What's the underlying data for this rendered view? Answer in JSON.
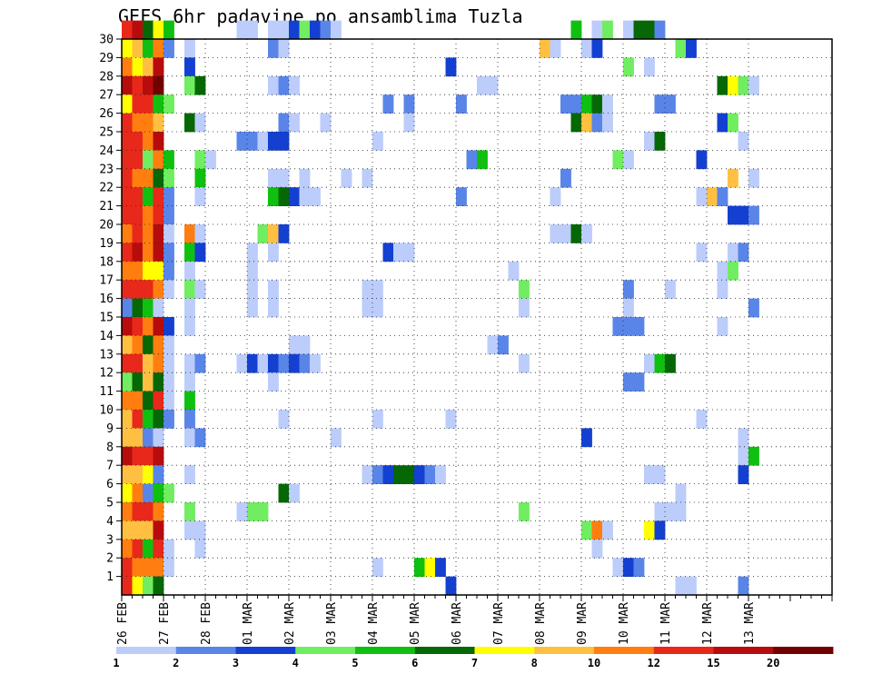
{
  "chart_data": {
    "type": "heatmap",
    "title": "GEFS 6hr padavine po ansamblima Tuzla",
    "xlabel": "",
    "ylabel": "",
    "x_ticks": [
      "26 FEB",
      "27 FEB",
      "28 FEB",
      "01 MAR",
      "02 MAR",
      "03 MAR",
      "04 MAR",
      "05 MAR",
      "06 MAR",
      "07 MAR",
      "08 MAR",
      "09 MAR",
      "10 MAR",
      "11 MAR",
      "12 MAR",
      "13 MAR"
    ],
    "y_ticks": [
      "1",
      "2",
      "3",
      "4",
      "5",
      "6",
      "7",
      "8",
      "9",
      "10",
      "11",
      "12",
      "13",
      "14",
      "15",
      "16",
      "17",
      "18",
      "19",
      "20",
      "21",
      "22",
      "23",
      "24",
      "25",
      "26",
      "27",
      "28",
      "29",
      "30"
    ],
    "y_range": [
      0,
      30
    ],
    "x_steps": 68,
    "grid": true,
    "legend": "bottom",
    "colorbar": {
      "colors": [
        "#bccdfb",
        "#5a85e8",
        "#1440d2",
        "#70ed60",
        "#10c010",
        "#056805",
        "#ffff00",
        "#ffc042",
        "#ff7e0f",
        "#e8281a",
        "#b80c0c",
        "#720000"
      ],
      "labels": [
        "1",
        "2",
        "3",
        "4",
        "5",
        "6",
        "7",
        "8",
        "10",
        "12",
        "15",
        "20"
      ]
    },
    "cells": [
      [
        0,
        30,
        9
      ],
      [
        1,
        30,
        10
      ],
      [
        2,
        30,
        5
      ],
      [
        3,
        30,
        6
      ],
      [
        4,
        30,
        4
      ],
      [
        11,
        30,
        0
      ],
      [
        12,
        30,
        0
      ],
      [
        14,
        30,
        0
      ],
      [
        15,
        30,
        0
      ],
      [
        16,
        30,
        2
      ],
      [
        17,
        30,
        3
      ],
      [
        18,
        30,
        2
      ],
      [
        19,
        30,
        1
      ],
      [
        20,
        30,
        0
      ],
      [
        43,
        30,
        4
      ],
      [
        45,
        30,
        0
      ],
      [
        46,
        30,
        3
      ],
      [
        48,
        30,
        0
      ],
      [
        49,
        30,
        5
      ],
      [
        50,
        30,
        5
      ],
      [
        51,
        30,
        1
      ],
      [
        0,
        29,
        6
      ],
      [
        1,
        29,
        7
      ],
      [
        2,
        29,
        4
      ],
      [
        3,
        29,
        8
      ],
      [
        4,
        29,
        1
      ],
      [
        6,
        29,
        0
      ],
      [
        14,
        29,
        1
      ],
      [
        15,
        29,
        0
      ],
      [
        40,
        29,
        7
      ],
      [
        41,
        29,
        0
      ],
      [
        44,
        29,
        0
      ],
      [
        45,
        29,
        2
      ],
      [
        53,
        29,
        3
      ],
      [
        54,
        29,
        2
      ],
      [
        0,
        28,
        8
      ],
      [
        1,
        28,
        6
      ],
      [
        2,
        28,
        7
      ],
      [
        3,
        28,
        10
      ],
      [
        6,
        28,
        2
      ],
      [
        31,
        28,
        2
      ],
      [
        48,
        28,
        3
      ],
      [
        50,
        28,
        0
      ],
      [
        0,
        27,
        10
      ],
      [
        1,
        27,
        9
      ],
      [
        2,
        27,
        10
      ],
      [
        3,
        27,
        11
      ],
      [
        6,
        27,
        3
      ],
      [
        7,
        27,
        5
      ],
      [
        14,
        27,
        0
      ],
      [
        15,
        27,
        1
      ],
      [
        16,
        27,
        0
      ],
      [
        34,
        27,
        0
      ],
      [
        35,
        27,
        0
      ],
      [
        57,
        27,
        5
      ],
      [
        58,
        27,
        6
      ],
      [
        59,
        27,
        3
      ],
      [
        60,
        27,
        0
      ],
      [
        0,
        26,
        6
      ],
      [
        1,
        26,
        9
      ],
      [
        2,
        26,
        9
      ],
      [
        3,
        26,
        4
      ],
      [
        4,
        26,
        3
      ],
      [
        25,
        26,
        1
      ],
      [
        27,
        26,
        1
      ],
      [
        32,
        26,
        1
      ],
      [
        42,
        26,
        1
      ],
      [
        43,
        26,
        1
      ],
      [
        44,
        26,
        4
      ],
      [
        45,
        26,
        5
      ],
      [
        46,
        26,
        0
      ],
      [
        51,
        26,
        1
      ],
      [
        52,
        26,
        1
      ],
      [
        0,
        25,
        9
      ],
      [
        1,
        25,
        8
      ],
      [
        2,
        25,
        8
      ],
      [
        3,
        25,
        7
      ],
      [
        6,
        25,
        5
      ],
      [
        7,
        25,
        0
      ],
      [
        15,
        25,
        1
      ],
      [
        16,
        25,
        0
      ],
      [
        19,
        25,
        0
      ],
      [
        27,
        25,
        0
      ],
      [
        43,
        25,
        5
      ],
      [
        44,
        25,
        7
      ],
      [
        45,
        25,
        1
      ],
      [
        46,
        25,
        0
      ],
      [
        57,
        25,
        2
      ],
      [
        58,
        25,
        3
      ],
      [
        0,
        24,
        9
      ],
      [
        1,
        24,
        9
      ],
      [
        2,
        24,
        8
      ],
      [
        3,
        24,
        10
      ],
      [
        11,
        24,
        1
      ],
      [
        12,
        24,
        1
      ],
      [
        13,
        24,
        0
      ],
      [
        14,
        24,
        2
      ],
      [
        15,
        24,
        2
      ],
      [
        24,
        24,
        0
      ],
      [
        50,
        24,
        0
      ],
      [
        51,
        24,
        5
      ],
      [
        59,
        24,
        0
      ],
      [
        0,
        23,
        9
      ],
      [
        1,
        23,
        9
      ],
      [
        2,
        23,
        3
      ],
      [
        3,
        23,
        8
      ],
      [
        4,
        23,
        4
      ],
      [
        7,
        23,
        3
      ],
      [
        8,
        23,
        0
      ],
      [
        33,
        23,
        1
      ],
      [
        34,
        23,
        4
      ],
      [
        47,
        23,
        3
      ],
      [
        48,
        23,
        0
      ],
      [
        55,
        23,
        2
      ],
      [
        0,
        22,
        9
      ],
      [
        1,
        22,
        8
      ],
      [
        2,
        22,
        8
      ],
      [
        3,
        22,
        5
      ],
      [
        4,
        22,
        3
      ],
      [
        7,
        22,
        4
      ],
      [
        14,
        22,
        0
      ],
      [
        15,
        22,
        0
      ],
      [
        17,
        22,
        0
      ],
      [
        21,
        22,
        0
      ],
      [
        23,
        22,
        0
      ],
      [
        42,
        22,
        1
      ],
      [
        58,
        22,
        7
      ],
      [
        60,
        22,
        0
      ],
      [
        0,
        21,
        9
      ],
      [
        1,
        21,
        9
      ],
      [
        2,
        21,
        4
      ],
      [
        3,
        21,
        9
      ],
      [
        4,
        21,
        1
      ],
      [
        7,
        21,
        0
      ],
      [
        14,
        21,
        4
      ],
      [
        15,
        21,
        5
      ],
      [
        16,
        21,
        2
      ],
      [
        17,
        21,
        0
      ],
      [
        18,
        21,
        0
      ],
      [
        32,
        21,
        1
      ],
      [
        41,
        21,
        0
      ],
      [
        55,
        21,
        0
      ],
      [
        56,
        21,
        7
      ],
      [
        57,
        21,
        1
      ],
      [
        0,
        20,
        9
      ],
      [
        1,
        20,
        9
      ],
      [
        2,
        20,
        8
      ],
      [
        3,
        20,
        9
      ],
      [
        4,
        20,
        1
      ],
      [
        58,
        20,
        2
      ],
      [
        59,
        20,
        2
      ],
      [
        60,
        20,
        1
      ],
      [
        0,
        19,
        8
      ],
      [
        1,
        19,
        9
      ],
      [
        2,
        19,
        8
      ],
      [
        3,
        19,
        10
      ],
      [
        4,
        19,
        0
      ],
      [
        6,
        19,
        8
      ],
      [
        7,
        19,
        0
      ],
      [
        13,
        19,
        3
      ],
      [
        14,
        19,
        7
      ],
      [
        15,
        19,
        2
      ],
      [
        41,
        19,
        0
      ],
      [
        42,
        19,
        0
      ],
      [
        43,
        19,
        5
      ],
      [
        44,
        19,
        0
      ],
      [
        0,
        18,
        9
      ],
      [
        1,
        18,
        10
      ],
      [
        2,
        18,
        8
      ],
      [
        3,
        18,
        10
      ],
      [
        4,
        18,
        1
      ],
      [
        6,
        18,
        4
      ],
      [
        7,
        18,
        2
      ],
      [
        12,
        18,
        0
      ],
      [
        14,
        18,
        0
      ],
      [
        25,
        18,
        2
      ],
      [
        26,
        18,
        0
      ],
      [
        27,
        18,
        0
      ],
      [
        55,
        18,
        0
      ],
      [
        58,
        18,
        0
      ],
      [
        59,
        18,
        1
      ],
      [
        0,
        17,
        8
      ],
      [
        1,
        17,
        8
      ],
      [
        2,
        17,
        6
      ],
      [
        3,
        17,
        6
      ],
      [
        4,
        17,
        1
      ],
      [
        6,
        17,
        0
      ],
      [
        12,
        17,
        0
      ],
      [
        37,
        17,
        0
      ],
      [
        57,
        17,
        0
      ],
      [
        58,
        17,
        3
      ],
      [
        0,
        16,
        9
      ],
      [
        1,
        16,
        9
      ],
      [
        2,
        16,
        9
      ],
      [
        3,
        16,
        8
      ],
      [
        4,
        16,
        0
      ],
      [
        6,
        16,
        3
      ],
      [
        7,
        16,
        0
      ],
      [
        12,
        16,
        0
      ],
      [
        14,
        16,
        0
      ],
      [
        23,
        16,
        0
      ],
      [
        24,
        16,
        0
      ],
      [
        38,
        16,
        3
      ],
      [
        48,
        16,
        1
      ],
      [
        52,
        16,
        0
      ],
      [
        57,
        16,
        0
      ],
      [
        0,
        15,
        1
      ],
      [
        1,
        15,
        5
      ],
      [
        2,
        15,
        4
      ],
      [
        3,
        15,
        0
      ],
      [
        6,
        15,
        0
      ],
      [
        12,
        15,
        0
      ],
      [
        14,
        15,
        0
      ],
      [
        23,
        15,
        0
      ],
      [
        24,
        15,
        0
      ],
      [
        38,
        15,
        0
      ],
      [
        48,
        15,
        0
      ],
      [
        60,
        15,
        1
      ],
      [
        0,
        14,
        10
      ],
      [
        1,
        14,
        9
      ],
      [
        2,
        14,
        8
      ],
      [
        3,
        14,
        10
      ],
      [
        4,
        14,
        2
      ],
      [
        6,
        14,
        0
      ],
      [
        47,
        14,
        1
      ],
      [
        48,
        14,
        1
      ],
      [
        49,
        14,
        1
      ],
      [
        57,
        14,
        0
      ],
      [
        0,
        13,
        7
      ],
      [
        1,
        13,
        8
      ],
      [
        2,
        13,
        5
      ],
      [
        3,
        13,
        8
      ],
      [
        4,
        13,
        0
      ],
      [
        16,
        13,
        0
      ],
      [
        17,
        13,
        0
      ],
      [
        35,
        13,
        0
      ],
      [
        36,
        13,
        1
      ],
      [
        0,
        12,
        9
      ],
      [
        1,
        12,
        9
      ],
      [
        2,
        12,
        7
      ],
      [
        3,
        12,
        8
      ],
      [
        4,
        12,
        0
      ],
      [
        6,
        12,
        0
      ],
      [
        7,
        12,
        1
      ],
      [
        11,
        12,
        0
      ],
      [
        12,
        12,
        2
      ],
      [
        13,
        12,
        0
      ],
      [
        14,
        12,
        2
      ],
      [
        15,
        12,
        1
      ],
      [
        16,
        12,
        2
      ],
      [
        17,
        12,
        1
      ],
      [
        18,
        12,
        0
      ],
      [
        38,
        12,
        0
      ],
      [
        50,
        12,
        0
      ],
      [
        51,
        12,
        4
      ],
      [
        52,
        12,
        5
      ],
      [
        0,
        11,
        3
      ],
      [
        1,
        11,
        5
      ],
      [
        2,
        11,
        7
      ],
      [
        3,
        11,
        5
      ],
      [
        4,
        11,
        0
      ],
      [
        6,
        11,
        0
      ],
      [
        14,
        11,
        0
      ],
      [
        48,
        11,
        1
      ],
      [
        49,
        11,
        1
      ],
      [
        0,
        10,
        8
      ],
      [
        1,
        10,
        8
      ],
      [
        2,
        10,
        5
      ],
      [
        3,
        10,
        9
      ],
      [
        4,
        10,
        0
      ],
      [
        6,
        10,
        4
      ],
      [
        0,
        9,
        7
      ],
      [
        1,
        9,
        9
      ],
      [
        2,
        9,
        4
      ],
      [
        3,
        9,
        5
      ],
      [
        4,
        9,
        1
      ],
      [
        6,
        9,
        1
      ],
      [
        15,
        9,
        0
      ],
      [
        24,
        9,
        0
      ],
      [
        31,
        9,
        0
      ],
      [
        55,
        9,
        0
      ],
      [
        0,
        8,
        7
      ],
      [
        1,
        8,
        7
      ],
      [
        2,
        8,
        1
      ],
      [
        3,
        8,
        0
      ],
      [
        6,
        8,
        0
      ],
      [
        7,
        8,
        1
      ],
      [
        20,
        8,
        0
      ],
      [
        44,
        8,
        2
      ],
      [
        59,
        8,
        0
      ],
      [
        0,
        7,
        10
      ],
      [
        1,
        7,
        9
      ],
      [
        2,
        7,
        9
      ],
      [
        3,
        7,
        10
      ],
      [
        59,
        7,
        0
      ],
      [
        60,
        7,
        4
      ],
      [
        0,
        6,
        7
      ],
      [
        1,
        6,
        7
      ],
      [
        2,
        6,
        6
      ],
      [
        3,
        6,
        1
      ],
      [
        6,
        6,
        0
      ],
      [
        23,
        6,
        0
      ],
      [
        24,
        6,
        1
      ],
      [
        25,
        6,
        2
      ],
      [
        26,
        6,
        5
      ],
      [
        27,
        6,
        5
      ],
      [
        28,
        6,
        2
      ],
      [
        29,
        6,
        1
      ],
      [
        30,
        6,
        0
      ],
      [
        50,
        6,
        0
      ],
      [
        51,
        6,
        0
      ],
      [
        59,
        6,
        2
      ],
      [
        0,
        5,
        6
      ],
      [
        1,
        5,
        8
      ],
      [
        2,
        5,
        1
      ],
      [
        3,
        5,
        4
      ],
      [
        4,
        5,
        3
      ],
      [
        15,
        5,
        5
      ],
      [
        16,
        5,
        0
      ],
      [
        53,
        5,
        0
      ],
      [
        0,
        4,
        8
      ],
      [
        1,
        4,
        9
      ],
      [
        2,
        4,
        9
      ],
      [
        3,
        4,
        8
      ],
      [
        6,
        4,
        3
      ],
      [
        11,
        4,
        0
      ],
      [
        12,
        4,
        3
      ],
      [
        13,
        4,
        3
      ],
      [
        38,
        4,
        3
      ],
      [
        51,
        4,
        0
      ],
      [
        52,
        4,
        0
      ],
      [
        53,
        4,
        0
      ],
      [
        0,
        3,
        7
      ],
      [
        1,
        3,
        7
      ],
      [
        2,
        3,
        7
      ],
      [
        3,
        3,
        10
      ],
      [
        6,
        3,
        0
      ],
      [
        7,
        3,
        0
      ],
      [
        44,
        3,
        3
      ],
      [
        45,
        3,
        8
      ],
      [
        46,
        3,
        0
      ],
      [
        50,
        3,
        6
      ],
      [
        51,
        3,
        2
      ],
      [
        0,
        2,
        8
      ],
      [
        1,
        2,
        9
      ],
      [
        2,
        2,
        4
      ],
      [
        3,
        2,
        9
      ],
      [
        4,
        2,
        0
      ],
      [
        7,
        2,
        0
      ],
      [
        45,
        2,
        0
      ],
      [
        0,
        1,
        9
      ],
      [
        1,
        1,
        8
      ],
      [
        2,
        1,
        8
      ],
      [
        3,
        1,
        8
      ],
      [
        4,
        1,
        0
      ],
      [
        24,
        1,
        0
      ],
      [
        28,
        1,
        4
      ],
      [
        29,
        1,
        6
      ],
      [
        30,
        1,
        2
      ],
      [
        47,
        1,
        0
      ],
      [
        48,
        1,
        2
      ],
      [
        49,
        1,
        1
      ],
      [
        0,
        0,
        9
      ],
      [
        1,
        0,
        6
      ],
      [
        2,
        0,
        3
      ],
      [
        3,
        0,
        5
      ],
      [
        31,
        0,
        2
      ],
      [
        53,
        0,
        0
      ],
      [
        54,
        0,
        0
      ],
      [
        59,
        0,
        1
      ]
    ]
  }
}
